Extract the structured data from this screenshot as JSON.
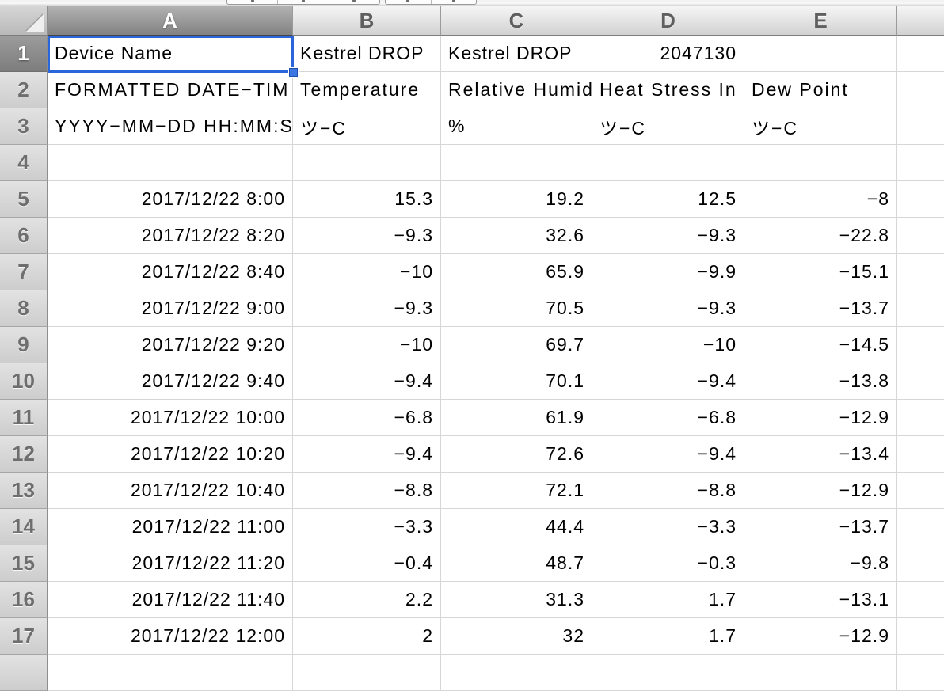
{
  "sheet": {
    "column_headers": [
      "A",
      "B",
      "C",
      "D",
      "E"
    ],
    "row_headers": [
      "1",
      "2",
      "3",
      "4",
      "5",
      "6",
      "7",
      "8",
      "9",
      "10",
      "11",
      "12",
      "13",
      "14",
      "15",
      "16",
      "17"
    ],
    "selection": {
      "cell": "A1",
      "column": "A",
      "row": "1",
      "accent_color": "#2a65d9",
      "handle_color": "#3c77e1"
    },
    "rows": [
      [
        "Device Name",
        "Kestrel DROP",
        "Kestrel DROP",
        "2047130",
        ""
      ],
      [
        "FORMATTED DATE−TIM",
        "Temperature",
        "Relative Humid",
        "Heat Stress In",
        "Dew Point"
      ],
      [
        "YYYY−MM−DD HH:MM:S",
        "ツ−C",
        "%",
        "ツ−C",
        "ツ−C"
      ],
      [
        "",
        "",
        "",
        "",
        ""
      ],
      [
        "2017/12/22 8:00",
        "15.3",
        "19.2",
        "12.5",
        "−8"
      ],
      [
        "2017/12/22 8:20",
        "−9.3",
        "32.6",
        "−9.3",
        "−22.8"
      ],
      [
        "2017/12/22 8:40",
        "−10",
        "65.9",
        "−9.9",
        "−15.1"
      ],
      [
        "2017/12/22 9:00",
        "−9.3",
        "70.5",
        "−9.3",
        "−13.7"
      ],
      [
        "2017/12/22 9:20",
        "−10",
        "69.7",
        "−10",
        "−14.5"
      ],
      [
        "2017/12/22 9:40",
        "−9.4",
        "70.1",
        "−9.4",
        "−13.8"
      ],
      [
        "2017/12/22 10:00",
        "−6.8",
        "61.9",
        "−6.8",
        "−12.9"
      ],
      [
        "2017/12/22 10:20",
        "−9.4",
        "72.6",
        "−9.4",
        "−13.4"
      ],
      [
        "2017/12/22 10:40",
        "−8.8",
        "72.1",
        "−8.8",
        "−12.9"
      ],
      [
        "2017/12/22 11:00",
        "−3.3",
        "44.4",
        "−3.3",
        "−13.7"
      ],
      [
        "2017/12/22 11:20",
        "−0.4",
        "48.7",
        "−0.3",
        "−9.8"
      ],
      [
        "2017/12/22 11:40",
        "2.2",
        "31.3",
        "1.7",
        "−13.1"
      ],
      [
        "2017/12/22 12:00",
        "2",
        "32",
        "1.7",
        "−12.9"
      ]
    ]
  }
}
